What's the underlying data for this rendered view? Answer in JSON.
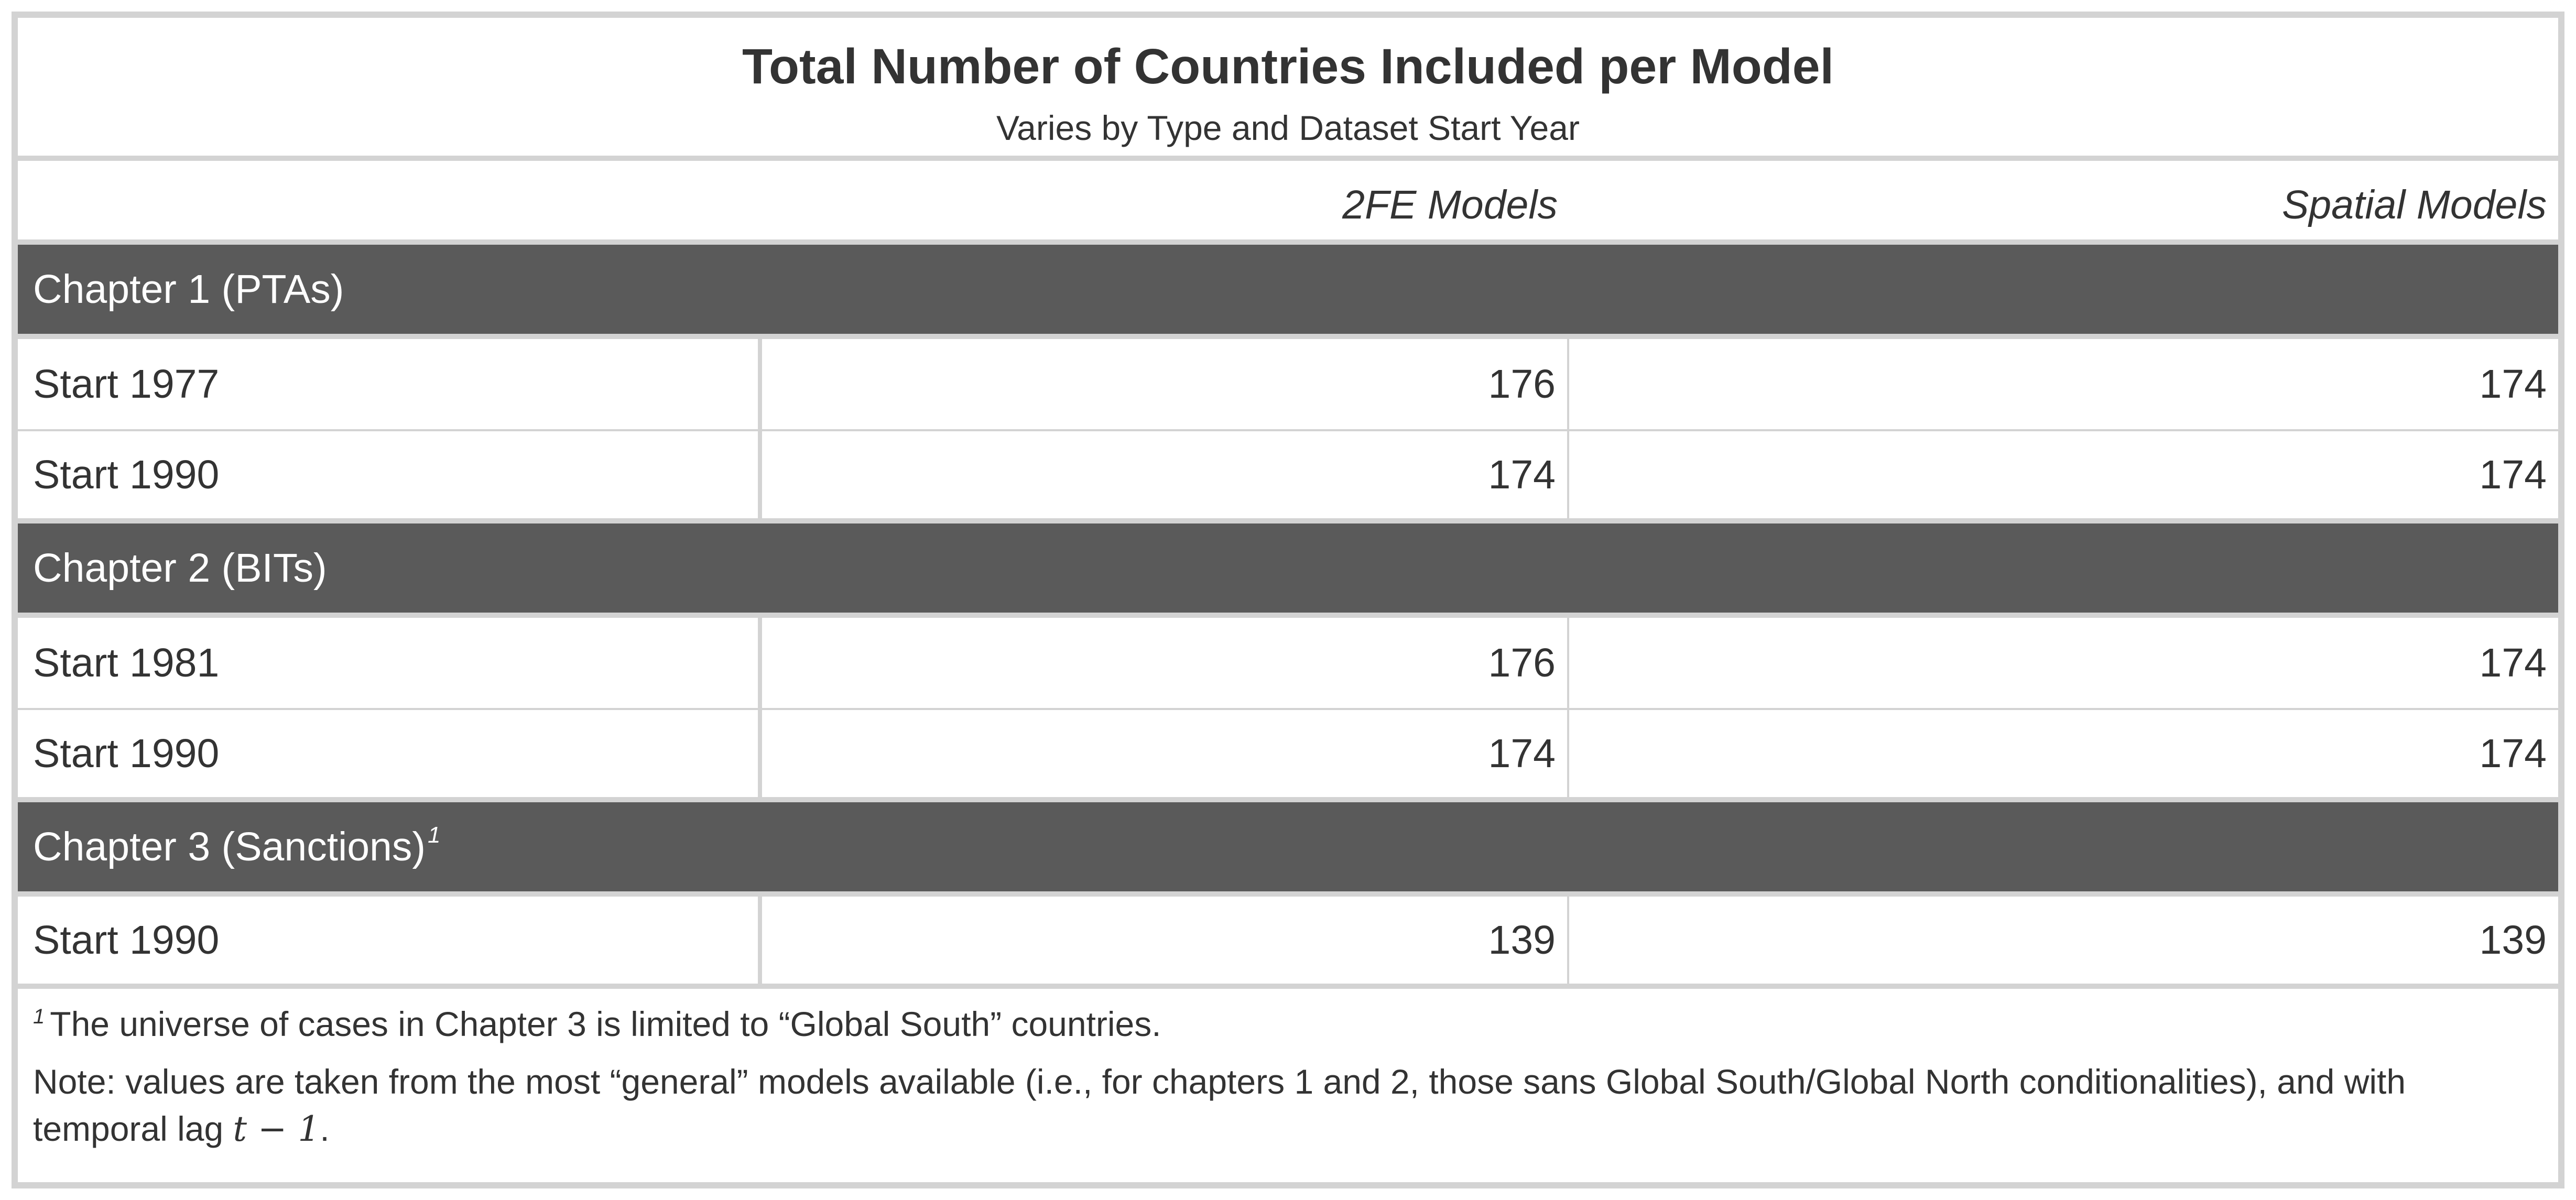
{
  "title": "Total Number of Countries Included per Model",
  "subtitle": "Varies by Type and Dataset Start Year",
  "columns": {
    "stub": "",
    "v1": "2FE Models",
    "v2": "Spatial Models"
  },
  "groups": [
    {
      "label": "Chapter 1 (PTAs)",
      "footnote_mark": "",
      "rows": [
        {
          "label": "Start 1977",
          "v1": "176",
          "v2": "174"
        },
        {
          "label": "Start 1990",
          "v1": "174",
          "v2": "174"
        }
      ]
    },
    {
      "label": "Chapter 2 (BITs)",
      "footnote_mark": "",
      "rows": [
        {
          "label": "Start 1981",
          "v1": "176",
          "v2": "174"
        },
        {
          "label": "Start 1990",
          "v1": "174",
          "v2": "174"
        }
      ]
    },
    {
      "label": "Chapter 3 (Sanctions)",
      "footnote_mark": "1",
      "rows": [
        {
          "label": "Start 1990",
          "v1": "139",
          "v2": "139"
        }
      ]
    }
  ],
  "footnote": {
    "mark": "1",
    "text": "The universe of cases in Chapter 3 is limited to “Global South” countries."
  },
  "note": {
    "text": "Note: values are taken from the most “general” models available (i.e., for chapters 1 and 2, those sans Global South/Global North conditionalities), and with temporal lag ",
    "math": "t − 1",
    "end": "."
  }
}
